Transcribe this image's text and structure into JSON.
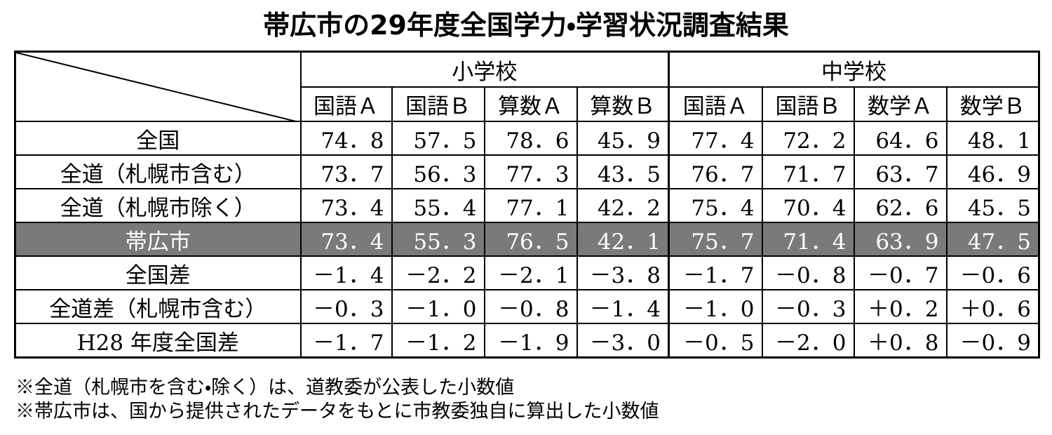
{
  "title": "帯広市の29年度全国学力・学習状況調査結果",
  "table": {
    "groups": [
      "小学校",
      "中学校"
    ],
    "subjects": [
      "国語Ａ",
      "国語Ｂ",
      "算数Ａ",
      "算数Ｂ",
      "国語Ａ",
      "国語Ｂ",
      "数学Ａ",
      "数学Ｂ"
    ],
    "rows": [
      {
        "label": "全国",
        "values": [
          "74．8",
          "57．5",
          "78．6",
          "45．9",
          "77．4",
          "72．2",
          "64．6",
          "48．1"
        ]
      },
      {
        "label": "全道（札幌市含む）",
        "values": [
          "73．7",
          "56．3",
          "77．3",
          "43．5",
          "76．7",
          "71．7",
          "63．7",
          "46．9"
        ]
      },
      {
        "label": "全道（札幌市除く）",
        "values": [
          "73．4",
          "55．4",
          "77．1",
          "42．2",
          "75．4",
          "70．4",
          "62．6",
          "45．5"
        ]
      },
      {
        "label": "帯広市",
        "values": [
          "73．4",
          "55．3",
          "76．5",
          "42．1",
          "75．7",
          "71．4",
          "63．9",
          "47．5"
        ]
      },
      {
        "label": "全国差",
        "values": [
          "－1．4",
          "－2．2",
          "－2．1",
          "－3．8",
          "－1．7",
          "－0．8",
          "－0．7",
          "－0．6"
        ]
      },
      {
        "label": "全道差（札幌市含む）",
        "values": [
          "－0．3",
          "－1．0",
          "－0．8",
          "－1．4",
          "－1．0",
          "－0．3",
          "＋0．2",
          "＋0．6"
        ]
      },
      {
        "label": "H28 年度全国差",
        "values": [
          "－1．7",
          "－1．2",
          "－1．9",
          "－3．0",
          "－0．5",
          "－2．0",
          "＋0．8",
          "－0．9"
        ]
      }
    ]
  },
  "notes": [
    "※全道（札幌市を含む・除く）は、道教委が公表した小数値",
    "※帯広市は、国から提供されたデータをもとに市教委独自に算出した小数値"
  ]
}
